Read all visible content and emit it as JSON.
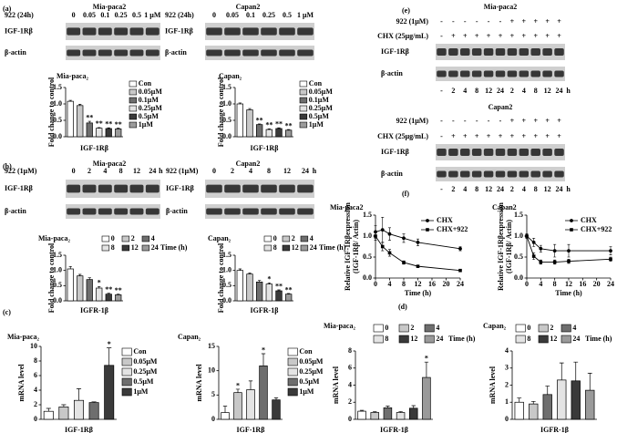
{
  "panel_labels": [
    "(a)",
    "(b)",
    "(c)",
    "(d)",
    "(e)",
    "(f)"
  ],
  "blots": [
    {
      "title": "Mia-paca2",
      "treatment": "922 (24h)",
      "lanes": [
        "0",
        "0.05",
        "0.1",
        "0.25",
        "0.5",
        "1 μM"
      ],
      "rows": [
        "IGF-1Rβ",
        "β-actin"
      ]
    },
    {
      "title": "Capan2",
      "treatment": "922 (24h)",
      "lanes": [
        "0",
        "0.05",
        "0.1",
        "0.25",
        "0.5",
        "1 μM"
      ],
      "rows": [
        "IGF-1Rβ",
        "β-actin"
      ]
    },
    {
      "title": "Mia-paca2",
      "treatment": "922 (1μM)",
      "lanes": [
        "0",
        "2",
        "4",
        "8",
        "12",
        "24"
      ],
      "unit": "h",
      "rows": [
        "IGF-1Rβ",
        "β-actin"
      ]
    },
    {
      "title": "Capan2",
      "treatment": "922 (1μM)",
      "lanes": [
        "0",
        "2",
        "4",
        "8",
        "12",
        "24"
      ],
      "unit": "h",
      "rows": [
        "IGF-1Rβ",
        "β-actin"
      ]
    },
    {
      "title": "Mia-paca2",
      "sign_rows": [
        {
          "label": "922 (1μM)",
          "signs": [
            "-",
            "-",
            "-",
            "-",
            "-",
            "-",
            "+",
            "+",
            "+",
            "+",
            "+"
          ]
        },
        {
          "label": "CHX (25μg/mL)",
          "signs": [
            "-",
            "+",
            "+",
            "+",
            "+",
            "+",
            "+",
            "+",
            "+",
            "+",
            "+"
          ]
        }
      ],
      "rows": [
        "IGF-1Rβ",
        "β-actin"
      ],
      "lanes": [
        "-",
        "2",
        "4",
        "8",
        "12",
        "24",
        "2",
        "4",
        "8",
        "12",
        "24"
      ],
      "unit": "h"
    },
    {
      "title": "Capan2",
      "sign_rows": [
        {
          "label": "922 (1μM)",
          "signs": [
            "-",
            "-",
            "-",
            "-",
            "-",
            "-",
            "+",
            "+",
            "+",
            "+",
            "+"
          ]
        },
        {
          "label": "CHX (25μg/mL)",
          "signs": [
            "-",
            "+",
            "+",
            "+",
            "+",
            "+",
            "+",
            "+",
            "+",
            "+",
            "+"
          ]
        }
      ],
      "rows": [
        "IGF-1Rβ",
        "β-actin"
      ],
      "lanes": [
        "-",
        "2",
        "4",
        "8",
        "12",
        "24",
        "2",
        "4",
        "8",
        "12",
        "24"
      ],
      "unit": "h"
    }
  ],
  "chart_data": [
    {
      "type": "bar",
      "title": "Mia-paca₂",
      "xlabel": "IGF-1Rβ",
      "ylabel": "Fold change to control",
      "categories": [
        "Con",
        "0.05μM",
        "0.1μM",
        "0.25μM",
        "0.5μM",
        "1μM"
      ],
      "values": [
        1.08,
        0.95,
        0.42,
        0.26,
        0.25,
        0.24
      ],
      "errors": [
        0.03,
        0.04,
        0.05,
        0.02,
        0.02,
        0.02
      ],
      "annotations": [
        null,
        null,
        "**",
        "**",
        "**",
        "**"
      ],
      "colors": [
        "#ffffff",
        "#c8c8c8",
        "#6e6e6e",
        "#e4e4e4",
        "#3a3a3a",
        "#9a9a9a"
      ],
      "ylim": [
        0,
        1.5
      ],
      "yticks": [
        {
          "value": 0,
          "label": "0.0"
        },
        0.5,
        {
          "value": 1,
          "label": "1.0"
        },
        1.5
      ]
    },
    {
      "type": "bar",
      "title": "Capan₂",
      "xlabel": "IGF-1Rβ",
      "ylabel": "Fold change to control",
      "categories": [
        "Con",
        "0.05μM",
        "0.1μM",
        "0.25μM",
        "0.5μM",
        "1μM"
      ],
      "values": [
        1.0,
        0.82,
        0.37,
        0.22,
        0.25,
        0.2
      ],
      "errors": [
        0.03,
        0.04,
        0.02,
        0.02,
        0.02,
        0.02
      ],
      "annotations": [
        null,
        null,
        "**",
        "**",
        "**",
        "**"
      ],
      "colors": [
        "#ffffff",
        "#c8c8c8",
        "#6e6e6e",
        "#e4e4e4",
        "#3a3a3a",
        "#9a9a9a"
      ],
      "ylim": [
        0,
        1.5
      ],
      "yticks": [
        {
          "value": 0,
          "label": "0.0"
        },
        0.5,
        {
          "value": 1,
          "label": "1.0"
        },
        1.5
      ]
    },
    {
      "type": "bar",
      "title": "Mia-paca₂",
      "xlabel": "IGFR-1β",
      "ylabel": "Fold change to control",
      "categories": [
        "0",
        "2",
        "4",
        "8",
        "12",
        "24"
      ],
      "legend_title": "Time (h)",
      "values": [
        1.05,
        0.82,
        0.7,
        0.42,
        0.22,
        0.2
      ],
      "errors": [
        0.08,
        0.05,
        0.06,
        0.05,
        0.03,
        0.02
      ],
      "annotations": [
        null,
        null,
        null,
        "*",
        "**",
        "**"
      ],
      "colors": [
        "#ffffff",
        "#c8c8c8",
        "#6e6e6e",
        "#e4e4e4",
        "#3a3a3a",
        "#9a9a9a"
      ],
      "ylim": [
        0,
        1.5
      ],
      "yticks": [
        {
          "value": 0,
          "label": "0.0"
        },
        0.5,
        {
          "value": 1,
          "label": "1.0"
        },
        1.5
      ]
    },
    {
      "type": "bar",
      "title": "Capan₂",
      "xlabel": "IGFR-1β",
      "ylabel": "Fold change to control",
      "categories": [
        "0",
        "2",
        "4",
        "8",
        "12",
        "24"
      ],
      "legend_title": "Time (h)",
      "values": [
        1.0,
        0.88,
        0.62,
        0.55,
        0.33,
        0.22
      ],
      "errors": [
        0.05,
        0.04,
        0.05,
        0.04,
        0.03,
        0.02
      ],
      "annotations": [
        null,
        null,
        null,
        "*",
        "**",
        "**"
      ],
      "colors": [
        "#ffffff",
        "#c8c8c8",
        "#6e6e6e",
        "#e4e4e4",
        "#3a3a3a",
        "#9a9a9a"
      ],
      "ylim": [
        0,
        1.5
      ],
      "yticks": [
        {
          "value": 0,
          "label": "0.0"
        },
        0.5,
        {
          "value": 1,
          "label": "1.0"
        },
        1.5
      ]
    },
    {
      "type": "bar",
      "title": "Mia-paca₂",
      "xlabel": "IGF-1Rβ",
      "ylabel": "mRNA level",
      "categories": [
        "Con",
        "0.05μM",
        "0.25μM",
        "0.5μM",
        "1μM"
      ],
      "values": [
        1.1,
        1.7,
        2.6,
        2.3,
        7.4
      ],
      "errors": [
        0.4,
        0.3,
        1.6,
        0.1,
        2.4
      ],
      "annotations": [
        null,
        null,
        null,
        null,
        "*"
      ],
      "colors": [
        "#ffffff",
        "#c8c8c8",
        "#e4e4e4",
        "#6e6e6e",
        "#3a3a3a"
      ],
      "ylim": [
        0,
        10
      ],
      "yticks": [
        0,
        2,
        4,
        6,
        8,
        10
      ]
    },
    {
      "type": "bar",
      "title": "Capan₂",
      "xlabel": "IGF-1Rβ",
      "ylabel": "mRNA level",
      "categories": [
        "Con",
        "0.05μM",
        "0.25μM",
        "0.5μM",
        "1μM"
      ],
      "values": [
        1.4,
        5.5,
        6.1,
        11.0,
        4.0
      ],
      "errors": [
        1.3,
        0.7,
        1.8,
        2.5,
        0.4
      ],
      "annotations": [
        null,
        "*",
        null,
        "*",
        null
      ],
      "colors": [
        "#ffffff",
        "#c8c8c8",
        "#e4e4e4",
        "#6e6e6e",
        "#3a3a3a"
      ],
      "ylim": [
        0,
        15
      ],
      "yticks": [
        0,
        5,
        10,
        15
      ]
    },
    {
      "type": "bar",
      "title": "Mia-paca₂",
      "xlabel": "IGFR-1β",
      "ylabel": "mRNA level",
      "categories": [
        "0",
        "2",
        "4",
        "8",
        "12",
        "24"
      ],
      "legend_title": "Time (h)",
      "values": [
        0.95,
        0.8,
        1.35,
        0.8,
        1.3,
        4.9
      ],
      "errors": [
        0.1,
        0.1,
        0.2,
        0.1,
        0.3,
        1.8
      ],
      "annotations": [
        null,
        null,
        null,
        null,
        null,
        "*"
      ],
      "colors": [
        "#ffffff",
        "#c8c8c8",
        "#6e6e6e",
        "#e4e4e4",
        "#3a3a3a",
        "#9a9a9a"
      ],
      "ylim": [
        0,
        8
      ],
      "yticks": [
        0,
        2,
        4,
        6,
        8
      ]
    },
    {
      "type": "bar",
      "title": "Capan₂",
      "xlabel": "IGFR-1β",
      "ylabel": "mRNA level",
      "categories": [
        "0",
        "2",
        "4",
        "8",
        "12",
        "24"
      ],
      "legend_title": "Time (h)",
      "values": [
        1.0,
        0.9,
        1.45,
        2.3,
        2.25,
        1.7
      ],
      "errors": [
        0.25,
        0.15,
        0.5,
        1.0,
        1.1,
        1.0
      ],
      "colors": [
        "#ffffff",
        "#c8c8c8",
        "#6e6e6e",
        "#e4e4e4",
        "#3a3a3a",
        "#9a9a9a"
      ],
      "ylim": [
        0,
        4
      ],
      "yticks": [
        0,
        1,
        2,
        3,
        4
      ]
    },
    {
      "type": "line",
      "title": "Mia-paca2",
      "xlabel": "Time (h)",
      "ylabel": [
        "Relative IGF-1Rβexpression",
        "(IGF-1Rβ/ Actin)"
      ],
      "x": [
        0,
        2,
        4,
        8,
        12,
        24
      ],
      "xlim": [
        0,
        24
      ],
      "xticks": [
        0,
        4,
        8,
        12,
        16,
        20,
        24
      ],
      "ylim": [
        0,
        1.5
      ],
      "yticks": [
        {
          "value": 0,
          "label": "0.0"
        },
        0.5,
        {
          "value": 1,
          "label": "1.0"
        },
        1.5
      ],
      "series": [
        {
          "name": "CHX",
          "color": "#000000",
          "marker": "circle",
          "values": [
            1.1,
            1.15,
            1.05,
            0.95,
            0.85,
            0.7
          ],
          "errors": [
            0.15,
            0.3,
            0.15,
            0.1,
            0.08,
            0.05
          ]
        },
        {
          "name": "CHX+922",
          "color": "#000000",
          "marker": "square",
          "values": [
            1.0,
            0.75,
            0.6,
            0.37,
            0.28,
            0.18
          ],
          "errors": [
            0.1,
            0.1,
            0.08,
            0.04,
            0.03,
            0.02
          ]
        }
      ]
    },
    {
      "type": "line",
      "title": "Capan2",
      "xlabel": "Time (h)",
      "ylabel": [
        "Relative IGF-1Rβexpression",
        "(IGF-1Rβ/ Actin)"
      ],
      "x": [
        0,
        2,
        4,
        8,
        12,
        24
      ],
      "xlim": [
        0,
        24
      ],
      "xticks": [
        0,
        4,
        8,
        12,
        16,
        20,
        24
      ],
      "ylim": [
        0,
        1.5
      ],
      "yticks": [
        {
          "value": 0,
          "label": "0.0"
        },
        0.5,
        {
          "value": 1,
          "label": "1.0"
        },
        1.5
      ],
      "series": [
        {
          "name": "CHX",
          "color": "#000000",
          "marker": "circle",
          "values": [
            1.0,
            0.85,
            0.7,
            0.65,
            0.65,
            0.65
          ],
          "errors": [
            0.05,
            0.1,
            0.08,
            0.15,
            0.15,
            0.1
          ]
        },
        {
          "name": "CHX+922",
          "color": "#000000",
          "marker": "square",
          "values": [
            1.0,
            0.52,
            0.38,
            0.38,
            0.4,
            0.45
          ],
          "errors": [
            0.05,
            0.08,
            0.05,
            0.05,
            0.05,
            0.05
          ]
        }
      ]
    }
  ]
}
